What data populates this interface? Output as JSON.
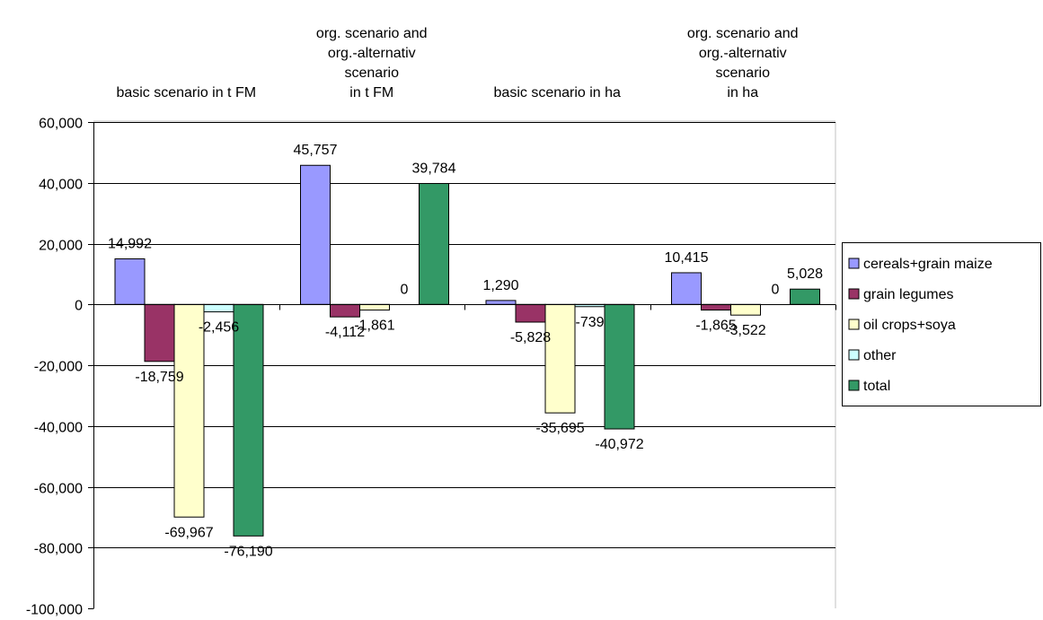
{
  "chart_data": {
    "type": "bar",
    "categories": [
      [
        "basic scenario in t FM"
      ],
      [
        "org. scenario and",
        "org.-alternativ",
        "scenario",
        "in t FM"
      ],
      [
        "basic scenario in ha"
      ],
      [
        "org. scenario and",
        "org.-alternativ",
        "scenario",
        "in ha"
      ]
    ],
    "series": [
      {
        "name": "cereals+grain maize",
        "color": "#9999ff",
        "values": [
          14992,
          45757,
          1290,
          10415
        ],
        "labels": [
          "14,992",
          "45,757",
          "1,290",
          "10,415"
        ]
      },
      {
        "name": "grain legumes",
        "color": "#993366",
        "values": [
          -18759,
          -4112,
          -5828,
          -1865
        ],
        "labels": [
          "-18,759",
          "-4,112",
          "-5,828",
          "-1,865"
        ]
      },
      {
        "name": "oil crops+soya",
        "color": "#ffffcc",
        "values": [
          -69967,
          -1861,
          -35695,
          -3522
        ],
        "labels": [
          "-69,967",
          "-1,861",
          "-35,695",
          "-3,522"
        ]
      },
      {
        "name": "other",
        "color": "#ccffff",
        "values": [
          -2456,
          0,
          -739,
          0
        ],
        "labels": [
          "-2,456",
          "0",
          "-739",
          "0"
        ]
      },
      {
        "name": "total",
        "color": "#339966",
        "values": [
          -76190,
          39784,
          -40972,
          5028
        ],
        "labels": [
          "-76,190",
          "39,784",
          "-40,972",
          "5,028"
        ]
      }
    ],
    "yticks": [
      60000,
      40000,
      20000,
      0,
      -20000,
      -40000,
      -60000,
      -80000,
      -100000
    ],
    "ytick_labels": [
      "60,000",
      "40,000",
      "20,000",
      "0",
      "-20,000",
      "-40,000",
      "-60,000",
      "-80,000",
      "-100,000"
    ],
    "ylim": [
      -100000,
      60000
    ],
    "grid": true,
    "legend_position": "right",
    "title": "",
    "xlabel": "",
    "ylabel": ""
  }
}
